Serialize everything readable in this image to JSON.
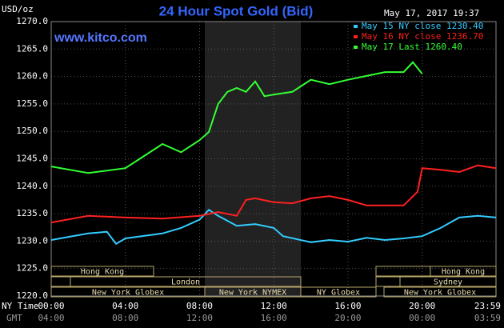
{
  "chart_data": {
    "type": "line",
    "title": "24 Hour Spot Gold (Bid)",
    "unit_label": "USD/oz",
    "timestamp": "May 17, 2017 19:37",
    "site": "www.kitco.com",
    "x_row_labels": [
      "NY Time",
      "GMT"
    ],
    "xlim": [
      0,
      23.98
    ],
    "xticks": [
      {
        "value": 0,
        "label": "00:00"
      },
      {
        "value": 4,
        "label": "04:00"
      },
      {
        "value": 8,
        "label": "08:00"
      },
      {
        "value": 12,
        "label": "12:00"
      },
      {
        "value": 16,
        "label": "16:00"
      },
      {
        "value": 20,
        "label": "20:00"
      },
      {
        "value": 23.98,
        "label": "23:59"
      }
    ],
    "xticks_gmt": [
      "04:00",
      "08:00",
      "12:00",
      "16:00",
      "20:00",
      "00:00",
      "03:59"
    ],
    "ylim": [
      1220,
      1270
    ],
    "yticks": [
      {
        "value": 1220,
        "label": "1220.0"
      },
      {
        "value": 1225,
        "label": "1225.0"
      },
      {
        "value": 1230,
        "label": "1230.0"
      },
      {
        "value": 1235,
        "label": "1235.0"
      },
      {
        "value": 1240,
        "label": "1240.0"
      },
      {
        "value": 1245,
        "label": "1245.0"
      },
      {
        "value": 1250,
        "label": "1250.0"
      },
      {
        "value": 1255,
        "label": "1255.0"
      },
      {
        "value": 1260,
        "label": "1260.0"
      },
      {
        "value": 1265,
        "label": "1265.0"
      },
      {
        "value": 1270,
        "label": "1270.0"
      }
    ],
    "grid": true,
    "sessions": [
      "Hong Kong",
      "Hong Kong",
      "London",
      "Sydney",
      "New York Globex",
      "New York NYMEX",
      "NY Globex",
      "New York Globex"
    ],
    "series": [
      {
        "name": "May 15 NY close 1230.40",
        "color": "#33ccff",
        "x": [
          0,
          2,
          3,
          3.5,
          4,
          6,
          7,
          8,
          8.5,
          9,
          10,
          11,
          12,
          12.5,
          14,
          15,
          16,
          17,
          18,
          19,
          20,
          21,
          22,
          23,
          23.98
        ],
        "values": [
          1230.2,
          1231.4,
          1231.7,
          1229.5,
          1230.5,
          1231.4,
          1232.4,
          1233.9,
          1235.7,
          1234.6,
          1232.8,
          1233.1,
          1232.4,
          1230.9,
          1229.8,
          1230.2,
          1229.9,
          1230.6,
          1230.2,
          1230.5,
          1230.9,
          1232.4,
          1234.3,
          1234.6,
          1234.3
        ]
      },
      {
        "name": "May 16 NY close 1236.70",
        "color": "#ff2020",
        "x": [
          0,
          2,
          4,
          6,
          8,
          9,
          10,
          10.5,
          11,
          12,
          13,
          14,
          15,
          16,
          17,
          18,
          19,
          19.75,
          20,
          21,
          22,
          23,
          23.98
        ],
        "values": [
          1233.4,
          1234.6,
          1234.3,
          1234.1,
          1234.6,
          1235.3,
          1234.6,
          1237.5,
          1237.8,
          1237.1,
          1236.9,
          1237.8,
          1238.2,
          1237.5,
          1236.5,
          1236.5,
          1236.5,
          1239.0,
          1243.3,
          1243.0,
          1242.6,
          1243.8,
          1243.3
        ]
      },
      {
        "name": "May 17 Last 1260.40",
        "color": "#33ff33",
        "x": [
          0,
          2,
          4,
          5,
          6,
          7,
          8,
          8.5,
          9,
          9.5,
          10,
          10.5,
          11,
          11.5,
          12,
          13,
          14,
          15,
          16,
          17,
          18,
          19,
          19.5,
          20
        ],
        "values": [
          1243.6,
          1242.4,
          1243.3,
          1245.5,
          1247.7,
          1246.2,
          1248.4,
          1249.9,
          1255.0,
          1257.2,
          1257.9,
          1257.2,
          1259.1,
          1256.4,
          1256.7,
          1257.2,
          1259.4,
          1258.6,
          1259.4,
          1260.1,
          1260.8,
          1260.8,
          1262.6,
          1260.5
        ]
      }
    ]
  }
}
